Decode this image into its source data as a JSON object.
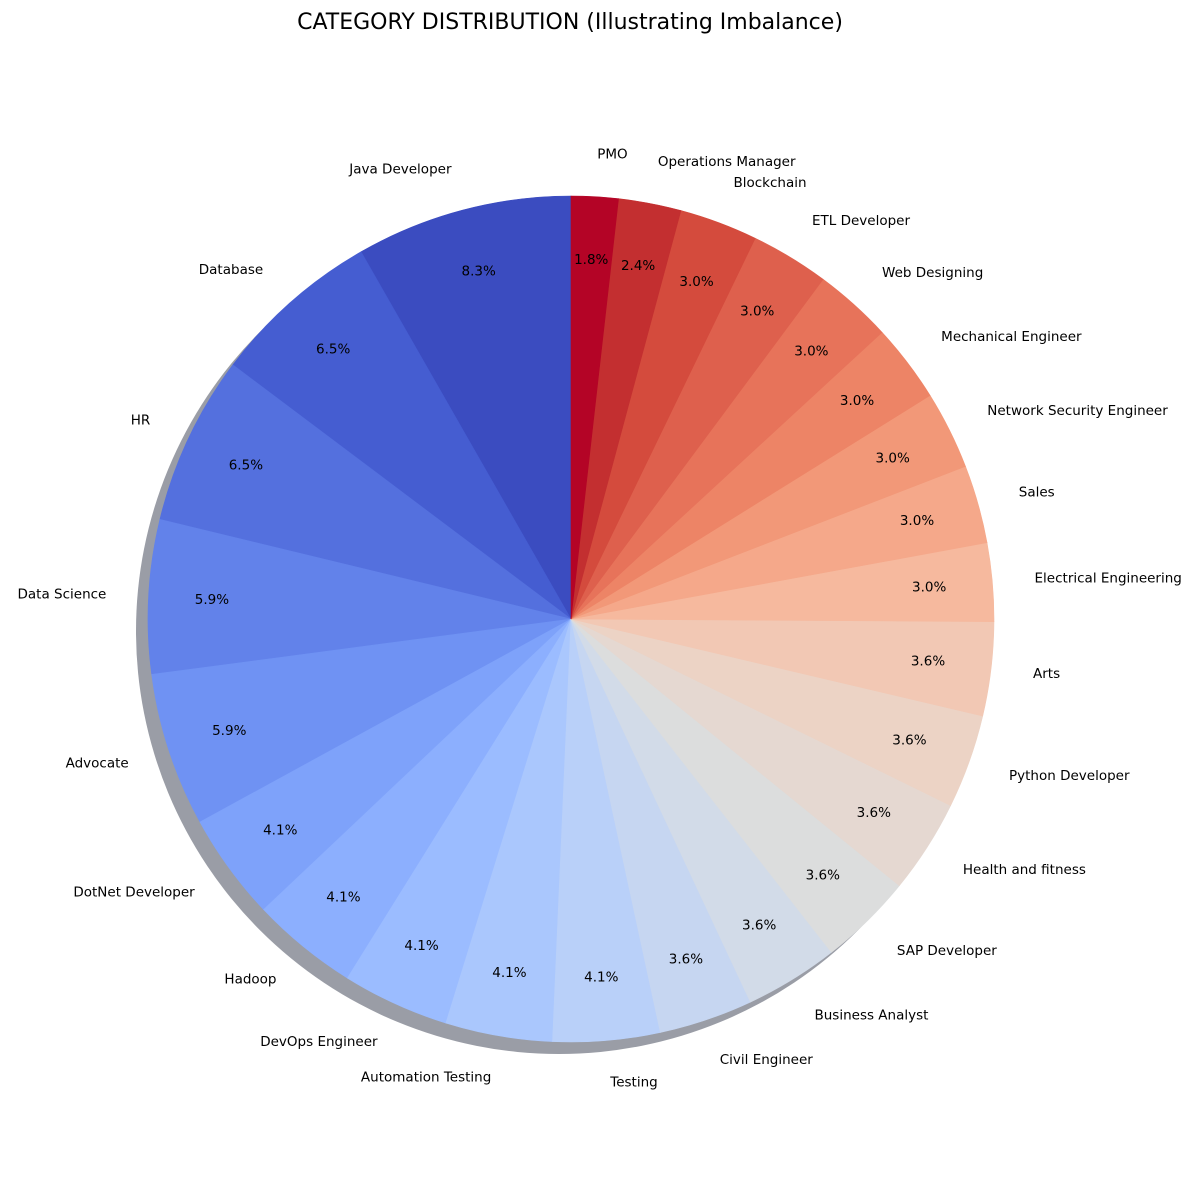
{
  "chart_data": {
    "type": "pie",
    "title": "CATEGORY DISTRIBUTION (Illustrating Imbalance)",
    "start_angle_deg": 90,
    "direction": "counterclockwise",
    "shadow": true,
    "slices": [
      {
        "label": "Java Developer",
        "pct": 8.3,
        "pct_text": "8.3%",
        "color": "#3b4cc0"
      },
      {
        "label": "Database",
        "pct": 6.5,
        "pct_text": "6.5%",
        "color": "#455dd1"
      },
      {
        "label": "HR",
        "pct": 6.5,
        "pct_text": "6.5%",
        "color": "#5470de"
      },
      {
        "label": "Data Science",
        "pct": 5.9,
        "pct_text": "5.9%",
        "color": "#6282ea"
      },
      {
        "label": "Advocate",
        "pct": 5.9,
        "pct_text": "5.9%",
        "color": "#6f92f3"
      },
      {
        "label": "DotNet Developer",
        "pct": 4.1,
        "pct_text": "4.1%",
        "color": "#7ea2fa"
      },
      {
        "label": "Hadoop",
        "pct": 4.1,
        "pct_text": "4.1%",
        "color": "#8caffe"
      },
      {
        "label": "DevOps Engineer",
        "pct": 4.1,
        "pct_text": "4.1%",
        "color": "#9bbcff"
      },
      {
        "label": "Automation Testing",
        "pct": 4.1,
        "pct_text": "4.1%",
        "color": "#aac7fd"
      },
      {
        "label": "Testing",
        "pct": 4.1,
        "pct_text": "4.1%",
        "color": "#b9d0f9"
      },
      {
        "label": "Civil Engineer",
        "pct": 3.6,
        "pct_text": "3.6%",
        "color": "#c6d6f1"
      },
      {
        "label": "Business Analyst",
        "pct": 3.6,
        "pct_text": "3.6%",
        "color": "#d2dbe8"
      },
      {
        "label": "SAP Developer",
        "pct": 3.6,
        "pct_text": "3.6%",
        "color": "#dcdddd"
      },
      {
        "label": "Health and fitness",
        "pct": 3.6,
        "pct_text": "3.6%",
        "color": "#e5d8d1"
      },
      {
        "label": "Python Developer",
        "pct": 3.6,
        "pct_text": "3.6%",
        "color": "#ecd3c5"
      },
      {
        "label": "Arts",
        "pct": 3.6,
        "pct_text": "3.6%",
        "color": "#f2c8b4"
      },
      {
        "label": "Electrical Engineering",
        "pct": 3.0,
        "pct_text": "3.0%",
        "color": "#f6b99e"
      },
      {
        "label": "Sales",
        "pct": 3.0,
        "pct_text": "3.0%",
        "color": "#f5a88a"
      },
      {
        "label": "Network Security Engineer",
        "pct": 3.0,
        "pct_text": "3.0%",
        "color": "#f29878"
      },
      {
        "label": "Mechanical Engineer",
        "pct": 3.0,
        "pct_text": "3.0%",
        "color": "#ed8466"
      },
      {
        "label": "Web Designing",
        "pct": 3.0,
        "pct_text": "3.0%",
        "color": "#e7735a"
      },
      {
        "label": "ETL Developer",
        "pct": 3.0,
        "pct_text": "3.0%",
        "color": "#de604d"
      },
      {
        "label": "Blockchain",
        "pct": 3.0,
        "pct_text": "3.0%",
        "color": "#d44b3d"
      },
      {
        "label": "Operations Manager",
        "pct": 2.4,
        "pct_text": "2.4%",
        "color": "#c32f30"
      },
      {
        "label": "PMO",
        "pct": 1.8,
        "pct_text": "1.8%",
        "color": "#b40426"
      }
    ]
  }
}
